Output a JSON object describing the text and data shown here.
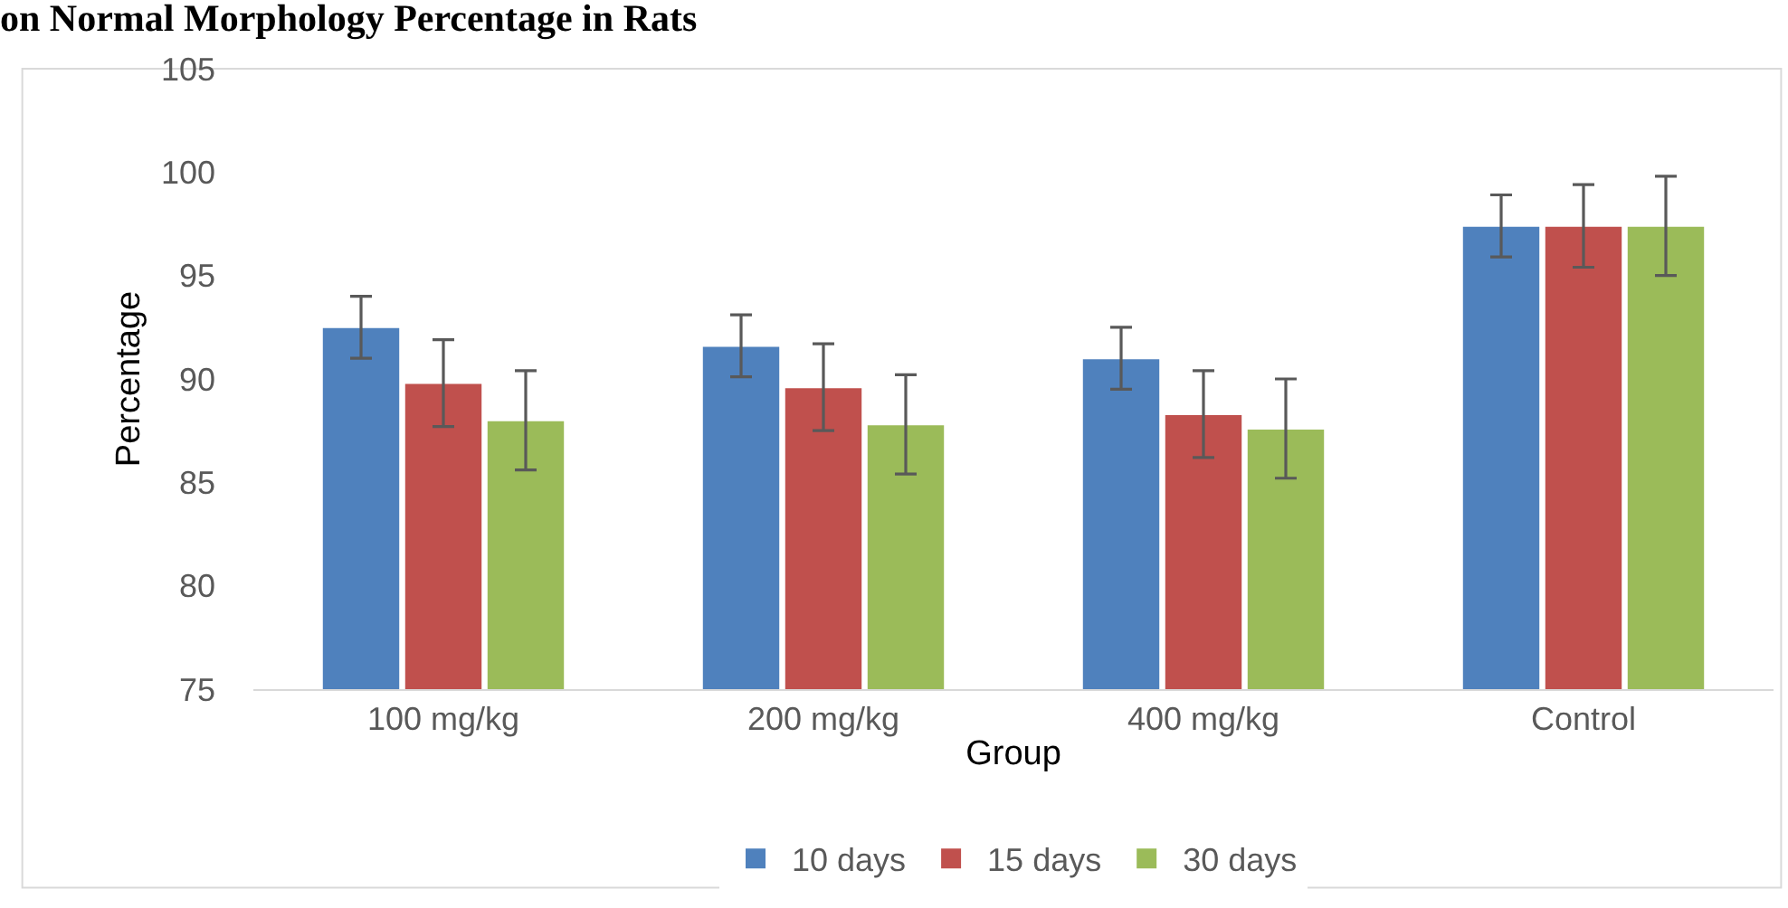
{
  "chart_data": {
    "type": "bar",
    "title": "on Normal Morphology Percentage in Rats",
    "xlabel": "Group",
    "ylabel": "Percentage",
    "categories": [
      "100 mg/kg",
      "200 mg/kg",
      "400 mg/kg",
      "Control"
    ],
    "series": [
      {
        "name": "10 days",
        "color": "#4f81bd",
        "values": [
          92.5,
          91.6,
          91.0,
          97.4
        ],
        "errors": [
          1.5,
          1.5,
          1.5,
          1.5
        ]
      },
      {
        "name": "15 days",
        "color": "#c0504d",
        "values": [
          89.8,
          89.6,
          88.3,
          97.4
        ],
        "errors": [
          2.1,
          2.1,
          2.1,
          2.0
        ]
      },
      {
        "name": "30 days",
        "color": "#9bbb59",
        "values": [
          88.0,
          87.8,
          87.6,
          97.4
        ],
        "errors": [
          2.4,
          2.4,
          2.4,
          2.4
        ]
      }
    ],
    "ylim": [
      75,
      105
    ],
    "yticks": [
      75,
      80,
      85,
      90,
      95,
      100,
      105
    ],
    "grid": false,
    "legend": "bottom"
  }
}
